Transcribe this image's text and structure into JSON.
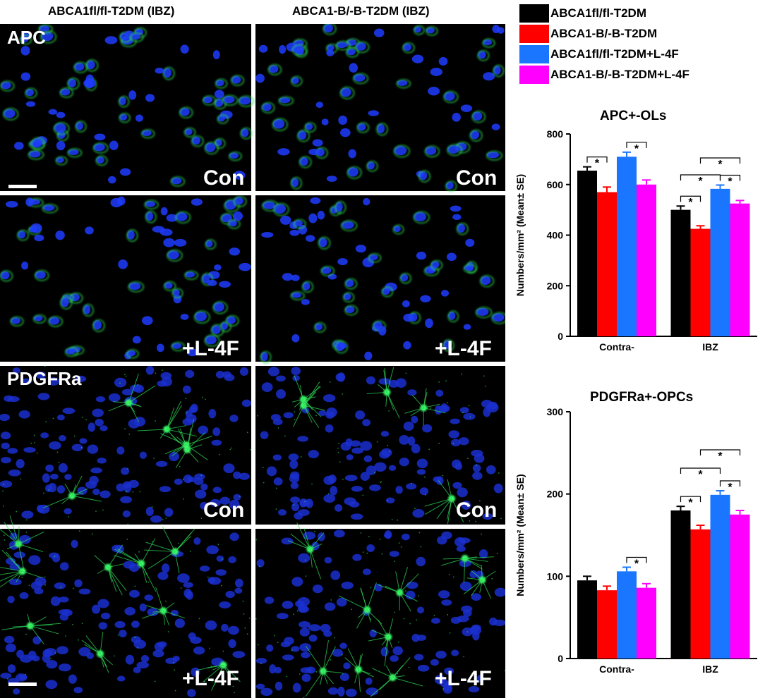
{
  "columns": [
    "ABCA1fl/fl-T2DM (IBZ)",
    "ABCA1-B/-B-T2DM (IBZ)"
  ],
  "panels": {
    "rows": [
      {
        "stain": "APC",
        "condition": "Con"
      },
      {
        "stain": "",
        "condition": "+L-4F"
      },
      {
        "stain": "PDGFRa",
        "condition": "Con"
      },
      {
        "stain": "",
        "condition": "+L-4F"
      }
    ]
  },
  "legend": [
    {
      "label": "ABCA1fl/fl-T2DM",
      "color": "#000000"
    },
    {
      "label": "ABCA1-B/-B-T2DM",
      "color": "#ff0000"
    },
    {
      "label": "ABCA1fl/fl-T2DM+L-4F",
      "color": "#1a75ff"
    },
    {
      "label": "ABCA1-B/-B-T2DM+L-4F",
      "color": "#ff00ff"
    }
  ],
  "chart_data": [
    {
      "type": "bar",
      "title": "APC+-OLs",
      "ylabel": "Numbers/mm² (Mean± SE)",
      "ylim": [
        0,
        800
      ],
      "yticks": [
        0,
        200,
        400,
        600,
        800
      ],
      "categories": [
        "Contra-",
        "IBZ"
      ],
      "series": [
        {
          "name": "ABCA1fl/fl-T2DM",
          "values": [
            655,
            500
          ],
          "errors": [
            15,
            15
          ]
        },
        {
          "name": "ABCA1-B/-B-T2DM",
          "values": [
            570,
            425
          ],
          "errors": [
            20,
            12
          ]
        },
        {
          "name": "ABCA1fl/fl-T2DM+L-4F",
          "values": [
            710,
            583
          ],
          "errors": [
            18,
            15
          ]
        },
        {
          "name": "ABCA1-B/-B-T2DM+L-4F",
          "values": [
            600,
            525
          ],
          "errors": [
            18,
            12
          ]
        }
      ],
      "significance": "*"
    },
    {
      "type": "bar",
      "title": "PDGFRa+-OPCs",
      "ylabel": "Numbers/mm² (Mean± SE)",
      "ylim": [
        0,
        300
      ],
      "yticks": [
        0,
        100,
        200,
        300
      ],
      "categories": [
        "Contra-",
        "IBZ"
      ],
      "series": [
        {
          "name": "ABCA1fl/fl-T2DM",
          "values": [
            95,
            180
          ],
          "errors": [
            5,
            5
          ]
        },
        {
          "name": "ABCA1-B/-B-T2DM",
          "values": [
            83,
            157
          ],
          "errors": [
            5,
            5
          ]
        },
        {
          "name": "ABCA1fl/fl-T2DM+L-4F",
          "values": [
            106,
            199
          ],
          "errors": [
            5,
            5
          ]
        },
        {
          "name": "ABCA1-B/-B-T2DM+L-4F",
          "values": [
            86,
            175
          ],
          "errors": [
            5,
            5
          ]
        }
      ],
      "significance": "*"
    }
  ]
}
